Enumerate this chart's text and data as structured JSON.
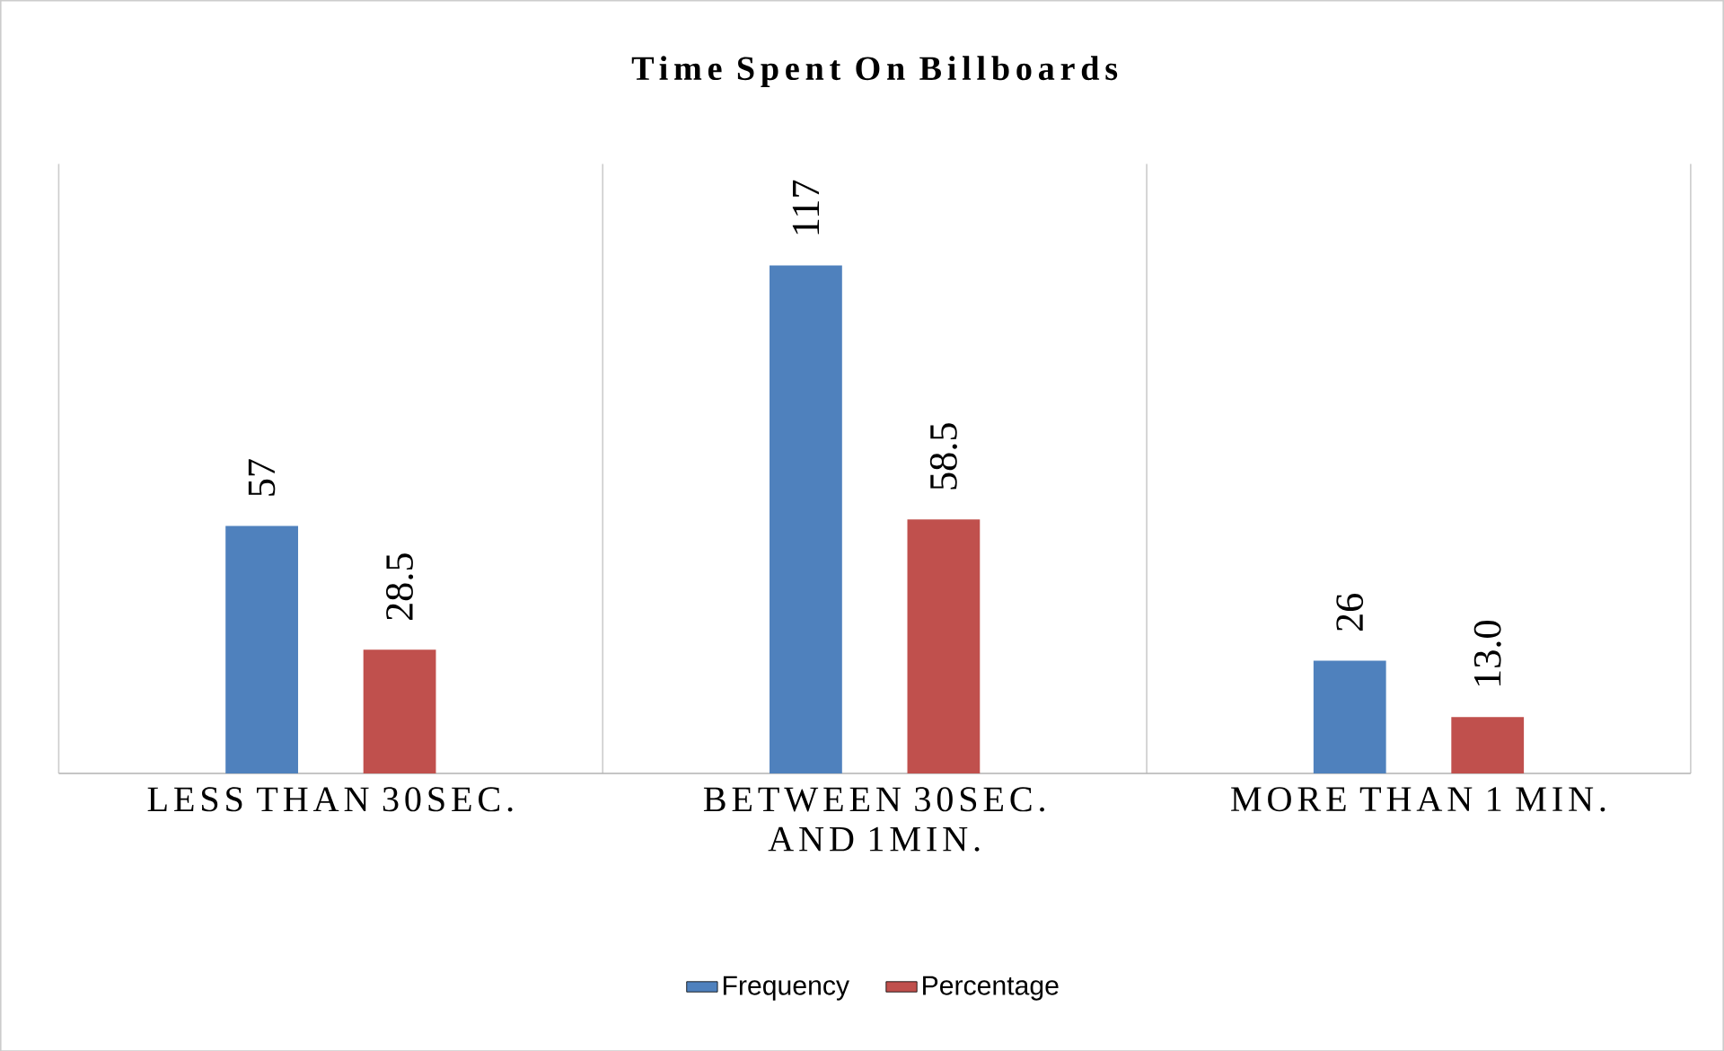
{
  "chart_data": {
    "type": "bar",
    "title": "Time Spent On Billboards",
    "categories": [
      "LESS THAN 30SEC.",
      "BETWEEN 30SEC. AND 1MIN.",
      "MORE THAN 1 MIN."
    ],
    "series": [
      {
        "name": "Frequency",
        "color": "#4f81bd",
        "values": [
          57,
          117,
          26
        ],
        "value_labels": [
          "57",
          "117",
          "26"
        ]
      },
      {
        "name": "Percentage",
        "color": "#c0504d",
        "values": [
          28.5,
          58.5,
          13.0
        ],
        "value_labels": [
          "28.5",
          "58.5",
          "13.0"
        ]
      }
    ],
    "grid": "x",
    "legend": "bottom"
  }
}
